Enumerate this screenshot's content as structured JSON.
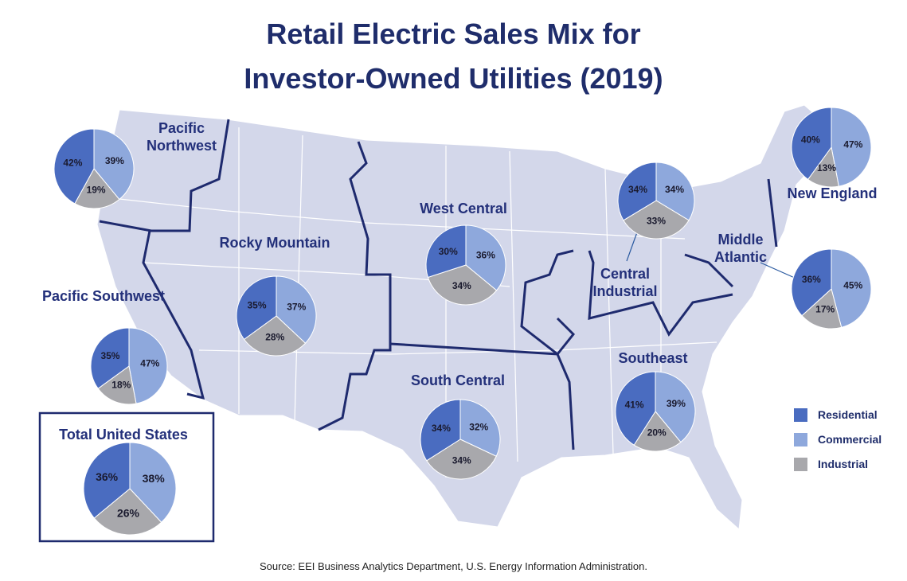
{
  "title": [
    "Retail Electric Sales Mix for",
    "Investor-Owned Utilities (2019)"
  ],
  "source": "Source: EEI Business Analytics Department, U.S. Energy Information Administration.",
  "chart_data": [
    {
      "type": "pie",
      "title": "Pacific Northwest",
      "categories": [
        "Residential",
        "Commercial",
        "Industrial"
      ],
      "colors": [
        "#4a6cc0",
        "#8ea8dc",
        "#a8a8ac"
      ],
      "values": [
        42,
        39,
        19
      ],
      "value_labels": [
        "42%",
        "39%",
        "19%"
      ]
    },
    {
      "type": "pie",
      "title": "Rocky Mountain",
      "categories": [
        "Residential",
        "Commercial",
        "Industrial"
      ],
      "colors": [
        "#4a6cc0",
        "#8ea8dc",
        "#a8a8ac"
      ],
      "values": [
        35,
        37,
        28
      ],
      "value_labels": [
        "35%",
        "37%",
        "28%"
      ]
    },
    {
      "type": "pie",
      "title": "Pacific Southwest",
      "categories": [
        "Residential",
        "Commercial",
        "Industrial"
      ],
      "colors": [
        "#4a6cc0",
        "#8ea8dc",
        "#a8a8ac"
      ],
      "values": [
        35,
        47,
        18
      ],
      "value_labels": [
        "35%",
        "47%",
        "18%"
      ]
    },
    {
      "type": "pie",
      "title": "West Central",
      "categories": [
        "Residential",
        "Commercial",
        "Industrial"
      ],
      "colors": [
        "#4a6cc0",
        "#8ea8dc",
        "#a8a8ac"
      ],
      "values": [
        30,
        36,
        34
      ],
      "value_labels": [
        "30%",
        "36%",
        "34%"
      ]
    },
    {
      "type": "pie",
      "title": "Central Industrial",
      "categories": [
        "Residential",
        "Commercial",
        "Industrial"
      ],
      "colors": [
        "#4a6cc0",
        "#8ea8dc",
        "#a8a8ac"
      ],
      "values": [
        34,
        34,
        33
      ],
      "value_labels": [
        "34%",
        "34%",
        "33%"
      ]
    },
    {
      "type": "pie",
      "title": "New England",
      "categories": [
        "Residential",
        "Commercial",
        "Industrial"
      ],
      "colors": [
        "#4a6cc0",
        "#8ea8dc",
        "#a8a8ac"
      ],
      "values": [
        40,
        47,
        13
      ],
      "value_labels": [
        "40%",
        "47%",
        "13%"
      ]
    },
    {
      "type": "pie",
      "title": "Middle Atlantic",
      "categories": [
        "Residential",
        "Commercial",
        "Industrial"
      ],
      "colors": [
        "#4a6cc0",
        "#8ea8dc",
        "#a8a8ac"
      ],
      "values": [
        36,
        45,
        17
      ],
      "value_labels": [
        "36%",
        "45%",
        "17%"
      ]
    },
    {
      "type": "pie",
      "title": "South Central",
      "categories": [
        "Residential",
        "Commercial",
        "Industrial"
      ],
      "colors": [
        "#4a6cc0",
        "#8ea8dc",
        "#a8a8ac"
      ],
      "values": [
        34,
        32,
        34
      ],
      "value_labels": [
        "34%",
        "32%",
        "34%"
      ]
    },
    {
      "type": "pie",
      "title": "Southeast",
      "categories": [
        "Residential",
        "Commercial",
        "Industrial"
      ],
      "colors": [
        "#4a6cc0",
        "#8ea8dc",
        "#a8a8ac"
      ],
      "values": [
        41,
        39,
        20
      ],
      "value_labels": [
        "41%",
        "39%",
        "20%"
      ]
    },
    {
      "type": "pie",
      "title": "Total United States",
      "categories": [
        "Residential",
        "Commercial",
        "Industrial"
      ],
      "colors": [
        "#4a6cc0",
        "#8ea8dc",
        "#a8a8ac"
      ],
      "values": [
        36,
        38,
        26
      ],
      "value_labels": [
        "36%",
        "38%",
        "26%"
      ]
    }
  ]
}
